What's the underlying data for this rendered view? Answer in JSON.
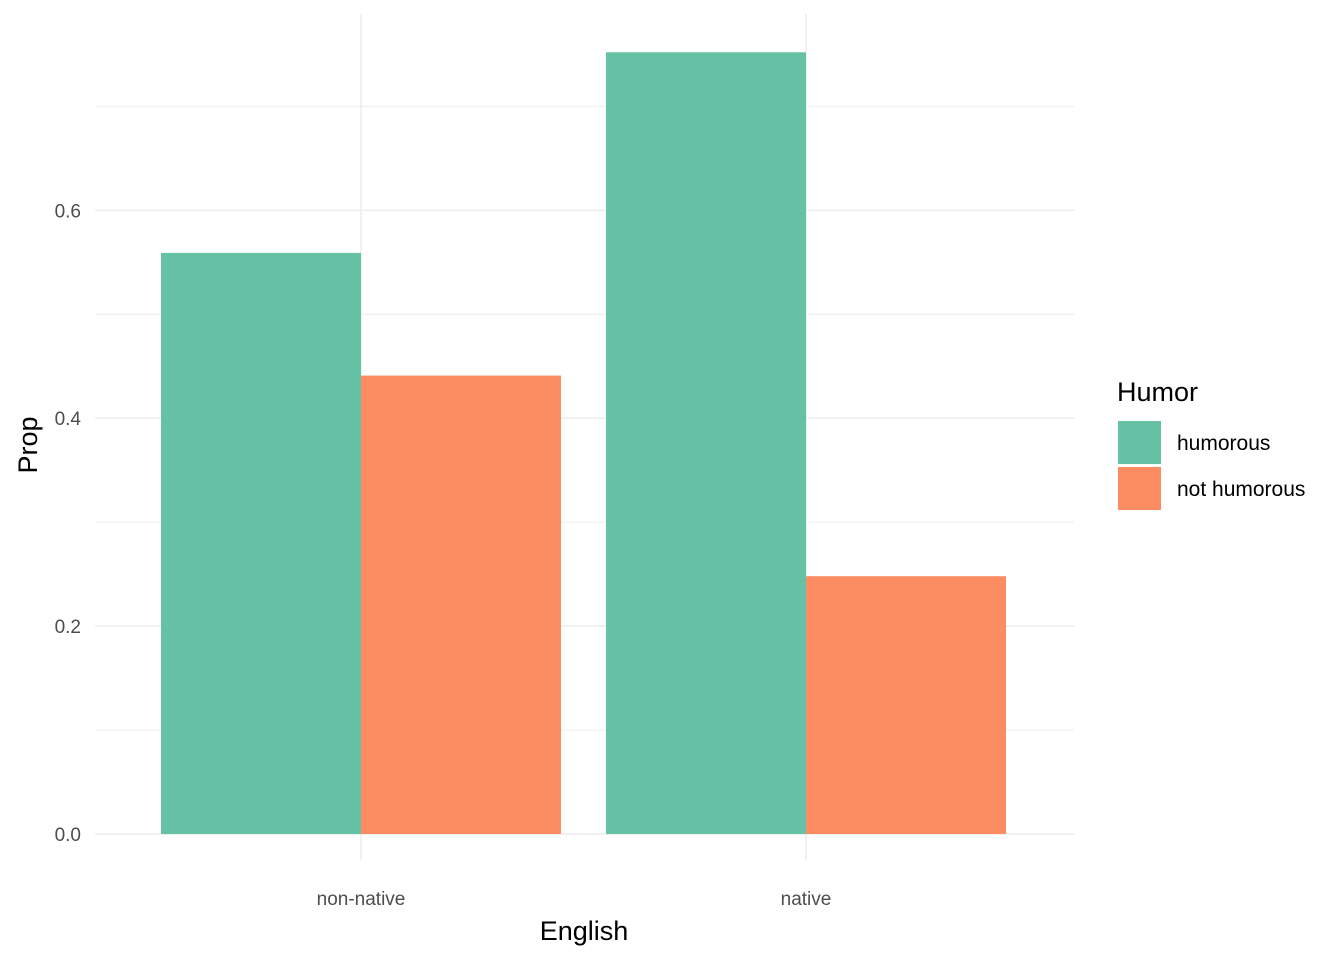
{
  "chart_data": {
    "type": "bar",
    "categories": [
      "non-native",
      "native"
    ],
    "series": [
      {
        "name": "humorous",
        "values": [
          0.559,
          0.752
        ],
        "color": "#66c2a5"
      },
      {
        "name": "not humorous",
        "values": [
          0.441,
          0.248
        ],
        "color": "#fc8d62"
      }
    ],
    "xlabel": "English",
    "ylabel": "Prop",
    "ylim": [
      0,
      0.79
    ],
    "yticks": [
      0.0,
      0.2,
      0.4,
      0.6
    ],
    "ytick_labels": [
      "0.0",
      "0.2",
      "0.4",
      "0.6"
    ],
    "legend_title": "Humor",
    "legend_position": "right",
    "grid": true,
    "colors": {
      "grid": "#ebebeb",
      "text_axis": "#4d4d4d"
    }
  }
}
